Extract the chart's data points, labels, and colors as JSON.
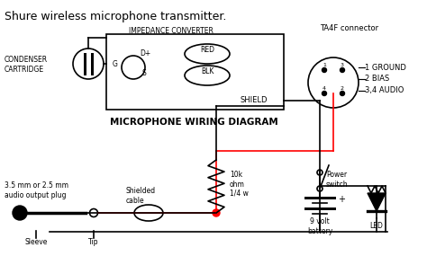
{
  "title": "Shure wireless microphone transmitter.",
  "bg_color": "#ffffff",
  "line_color": "#000000",
  "red_color": "#ff0000",
  "gray_color": "#888888",
  "text_color": "#000000",
  "impedance_converter": "IMPEDANCE CONVERTER",
  "ta4f": "TA4F connector",
  "condenser": "CONDENSER\nCARTRIDGE",
  "diagram_title": "MICROPHONE WIRING DIAGRAM",
  "plug_label": "3.5 mm or 2.5 mm\naudio output plug",
  "shielded": "Shielded\ncable",
  "sleeve": "Sleeve",
  "tip": "Tip",
  "resistor": "10k\nohm\n1/4 w",
  "power_switch": "Power\nswitch",
  "battery": "9 volt\nbattery",
  "led": "LED",
  "ground": "1 GROUND",
  "bias": "2 BIAS",
  "audio": "3,4 AUDIO",
  "red_label": "RED",
  "blk_label": "BLK",
  "shield": "SHIELD",
  "g_label": "G",
  "s_label": "S",
  "dplus": "D+"
}
